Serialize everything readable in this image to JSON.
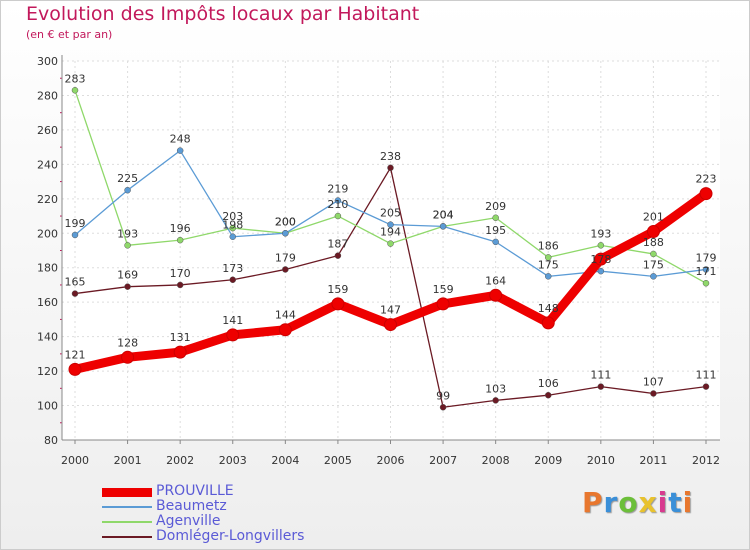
{
  "header": {
    "title": "Evolution des Impôts locaux par Habitant",
    "subtitle": "(en € et par an)"
  },
  "logo": {
    "text": "Proxiti",
    "colors": [
      "#e8772e",
      "#3a8fd8",
      "#6cbf3a",
      "#e8c22e",
      "#d83a8f",
      "#3a8fd8",
      "#e8772e"
    ]
  },
  "chart_data": {
    "type": "line",
    "title": "Evolution des Impôts locaux par Habitant",
    "subtitle": "(en € et par an)",
    "xlabel": "",
    "ylabel": "",
    "x": [
      "2000",
      "2001",
      "2002",
      "2003",
      "2004",
      "2005",
      "2006",
      "2007",
      "2008",
      "2009",
      "2010",
      "2011",
      "2012"
    ],
    "ylim": [
      80,
      300
    ],
    "yticks": [
      80,
      100,
      120,
      140,
      160,
      180,
      200,
      220,
      240,
      260,
      280,
      300
    ],
    "grid": true,
    "legend_position": "bottom-left",
    "series": [
      {
        "name": "PROUVILLE",
        "color": "#ee0000",
        "values": [
          121,
          128,
          131,
          141,
          144,
          159,
          147,
          159,
          164,
          148,
          185,
          201,
          223
        ],
        "labels": [
          "121",
          "128",
          "131",
          "141",
          "144",
          "159",
          "147",
          "159",
          "164",
          "148",
          "",
          "201",
          "223"
        ]
      },
      {
        "name": "Beaumetz",
        "color": "#5b9bd5",
        "values": [
          199,
          225,
          248,
          198,
          200,
          219,
          205,
          204,
          195,
          175,
          178,
          175,
          179
        ],
        "labels": [
          "199",
          "225",
          "248",
          "198",
          "200",
          "219",
          "205",
          "204",
          "195",
          "175",
          "178",
          "175",
          "179"
        ]
      },
      {
        "name": "Agenville",
        "color": "#8fd86a",
        "values": [
          283,
          193,
          196,
          203,
          200,
          210,
          194,
          204,
          209,
          186,
          193,
          188,
          171
        ],
        "labels": [
          "283",
          "193",
          "196",
          "203",
          "200",
          "210",
          "194",
          "204",
          "209",
          "186",
          "193",
          "188",
          "171"
        ]
      },
      {
        "name": "Domléger-Longvillers",
        "color": "#6b1a24",
        "values": [
          165,
          169,
          170,
          173,
          179,
          187,
          238,
          99,
          103,
          106,
          111,
          107,
          111
        ],
        "labels": [
          "165",
          "169",
          "170",
          "173",
          "179",
          "187",
          "238",
          "99",
          "103",
          "106",
          "111",
          "107",
          "111"
        ]
      }
    ]
  }
}
